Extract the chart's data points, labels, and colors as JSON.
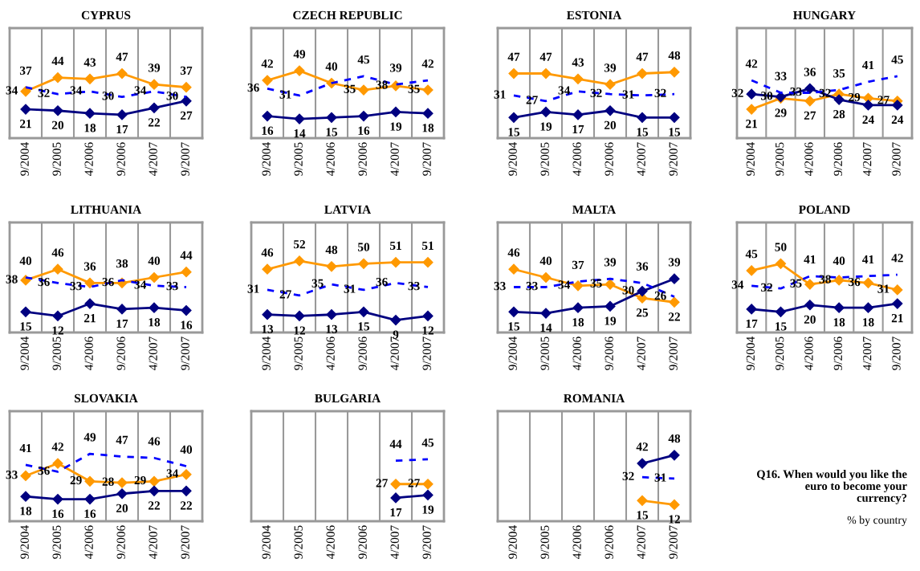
{
  "chart_data": [
    {
      "type": "line",
      "title": "CYPRUS",
      "categories": [
        "9/2004",
        "9/2005",
        "4/2006",
        "9/2006",
        "4/2007",
        "9/2007"
      ],
      "ylim": [
        0,
        80
      ],
      "tick_labels": "x",
      "data_labels": true,
      "series": [
        {
          "color": "#ff9900",
          "marker": "diamond",
          "line_style": "solid",
          "values": [
            34,
            44,
            43,
            47,
            39,
            37
          ]
        },
        {
          "color": "#000080",
          "marker": "diamond",
          "line_style": "solid",
          "values": [
            21,
            20,
            18,
            17,
            22,
            27
          ]
        },
        {
          "color": "#0000ff",
          "marker": "none",
          "line_style": "dashed",
          "values": [
            37,
            32,
            34,
            30,
            34,
            30
          ]
        }
      ]
    },
    {
      "type": "line",
      "title": "CZECH REPUBLIC",
      "categories": [
        "9/2004",
        "9/2005",
        "4/2006",
        "9/2006",
        "4/2007",
        "9/2007"
      ],
      "ylim": [
        0,
        80
      ],
      "tick_labels": "x",
      "data_labels": true,
      "series": [
        {
          "color": "#ff9900",
          "marker": "diamond",
          "line_style": "solid",
          "values": [
            42,
            49,
            40,
            35,
            38,
            35
          ]
        },
        {
          "color": "#000080",
          "marker": "diamond",
          "line_style": "solid",
          "values": [
            16,
            14,
            15,
            16,
            19,
            18
          ]
        },
        {
          "color": "#0000ff",
          "marker": "none",
          "line_style": "dashed",
          "values": [
            36,
            31,
            40,
            45,
            39,
            42
          ],
          "value_labels": [
            "36",
            "31",
            null,
            "45",
            "39",
            "42"
          ]
        }
      ]
    },
    {
      "type": "line",
      "title": "ESTONIA",
      "categories": [
        "9/2004",
        "9/2005",
        "4/2006",
        "9/2006",
        "4/2007",
        "9/2007"
      ],
      "ylim": [
        0,
        80
      ],
      "tick_labels": "x",
      "data_labels": true,
      "series": [
        {
          "color": "#ff9900",
          "marker": "diamond",
          "line_style": "solid",
          "values": [
            47,
            47,
            43,
            39,
            47,
            48
          ]
        },
        {
          "color": "#000080",
          "marker": "diamond",
          "line_style": "solid",
          "values": [
            15,
            19,
            17,
            20,
            15,
            15
          ]
        },
        {
          "color": "#0000ff",
          "marker": "none",
          "line_style": "dashed",
          "values": [
            31,
            27,
            34,
            32,
            31,
            32
          ]
        }
      ]
    },
    {
      "type": "line",
      "title": "HUNGARY",
      "categories": [
        "9/2004",
        "9/2005",
        "4/2006",
        "9/2006",
        "4/2007",
        "9/2007"
      ],
      "ylim": [
        0,
        80
      ],
      "tick_labels": "x",
      "data_labels": true,
      "series": [
        {
          "color": "#ff9900",
          "marker": "diamond",
          "line_style": "solid",
          "values": [
            21,
            29,
            27,
            32,
            29,
            27
          ]
        },
        {
          "color": "#000080",
          "marker": "diamond",
          "line_style": "solid",
          "values": [
            32,
            30,
            36,
            28,
            24,
            24
          ]
        },
        {
          "color": "#0000ff",
          "marker": "none",
          "line_style": "dashed",
          "values": [
            42,
            33,
            33,
            35,
            41,
            45
          ]
        }
      ]
    },
    {
      "type": "line",
      "title": "LITHUANIA",
      "categories": [
        "9/2004",
        "9/2005",
        "4/2006",
        "9/2006",
        "4/2007",
        "9/2007"
      ],
      "ylim": [
        0,
        80
      ],
      "tick_labels": "x",
      "data_labels": true,
      "series": [
        {
          "color": "#ff9900",
          "marker": "diamond",
          "line_style": "solid",
          "values": [
            38,
            46,
            36,
            36,
            40,
            44
          ]
        },
        {
          "color": "#000080",
          "marker": "diamond",
          "line_style": "solid",
          "values": [
            15,
            12,
            21,
            17,
            18,
            16
          ]
        },
        {
          "color": "#0000ff",
          "marker": "none",
          "line_style": "dashed",
          "values": [
            40,
            36,
            33,
            38,
            34,
            33
          ]
        }
      ]
    },
    {
      "type": "line",
      "title": "LATVIA",
      "categories": [
        "9/2004",
        "9/2005",
        "4/2006",
        "9/2006",
        "4/2007",
        "9/2007"
      ],
      "ylim": [
        0,
        80
      ],
      "tick_labels": "x",
      "data_labels": true,
      "series": [
        {
          "color": "#ff9900",
          "marker": "diamond",
          "line_style": "solid",
          "values": [
            46,
            52,
            48,
            50,
            51,
            51
          ]
        },
        {
          "color": "#000080",
          "marker": "diamond",
          "line_style": "solid",
          "values": [
            13,
            12,
            13,
            15,
            9,
            12
          ]
        },
        {
          "color": "#0000ff",
          "marker": "none",
          "line_style": "dashed",
          "values": [
            31,
            27,
            35,
            31,
            36,
            33
          ]
        }
      ]
    },
    {
      "type": "line",
      "title": "MALTA",
      "categories": [
        "9/2004",
        "9/2005",
        "4/2006",
        "9/2006",
        "4/2007",
        "9/2007"
      ],
      "ylim": [
        0,
        80
      ],
      "tick_labels": "x",
      "data_labels": true,
      "series": [
        {
          "color": "#ff9900",
          "marker": "diamond",
          "line_style": "solid",
          "values": [
            46,
            40,
            34,
            35,
            25,
            22
          ]
        },
        {
          "color": "#000080",
          "marker": "diamond",
          "line_style": "solid",
          "values": [
            15,
            14,
            18,
            19,
            30,
            39
          ]
        },
        {
          "color": "#0000ff",
          "marker": "none",
          "line_style": "dashed",
          "values": [
            33,
            33,
            37,
            39,
            36,
            26
          ]
        }
      ]
    },
    {
      "type": "line",
      "title": "POLAND",
      "categories": [
        "9/2004",
        "9/2005",
        "4/2006",
        "9/2006",
        "4/2007",
        "9/2007"
      ],
      "ylim": [
        0,
        80
      ],
      "tick_labels": "x",
      "data_labels": true,
      "series": [
        {
          "color": "#ff9900",
          "marker": "diamond",
          "line_style": "solid",
          "values": [
            45,
            50,
            35,
            38,
            36,
            31
          ]
        },
        {
          "color": "#000080",
          "marker": "diamond",
          "line_style": "solid",
          "values": [
            17,
            15,
            20,
            18,
            18,
            21
          ]
        },
        {
          "color": "#0000ff",
          "marker": "none",
          "line_style": "dashed",
          "values": [
            34,
            32,
            41,
            40,
            41,
            42
          ]
        }
      ]
    },
    {
      "type": "line",
      "title": "SLOVAKIA",
      "categories": [
        "9/2004",
        "9/2005",
        "4/2006",
        "9/2006",
        "4/2007",
        "9/2007"
      ],
      "ylim": [
        0,
        80
      ],
      "tick_labels": "x",
      "data_labels": true,
      "series": [
        {
          "color": "#ff9900",
          "marker": "diamond",
          "line_style": "solid",
          "values": [
            33,
            42,
            29,
            28,
            29,
            34
          ]
        },
        {
          "color": "#000080",
          "marker": "diamond",
          "line_style": "solid",
          "values": [
            18,
            16,
            16,
            20,
            22,
            22
          ]
        },
        {
          "color": "#0000ff",
          "marker": "none",
          "line_style": "dashed",
          "values": [
            41,
            36,
            49,
            47,
            46,
            40
          ]
        }
      ]
    },
    {
      "type": "line",
      "title": "BULGARIA",
      "categories": [
        "9/2004",
        "9/2005",
        "4/2006",
        "9/2006",
        "4/2007",
        "9/2007"
      ],
      "ylim": [
        0,
        80
      ],
      "tick_labels": "x",
      "data_labels": true,
      "series": [
        {
          "color": "#ff9900",
          "marker": "diamond",
          "line_style": "solid",
          "values": [
            null,
            null,
            null,
            null,
            27,
            27
          ]
        },
        {
          "color": "#000080",
          "marker": "diamond",
          "line_style": "solid",
          "values": [
            null,
            null,
            null,
            null,
            17,
            19
          ]
        },
        {
          "color": "#0000ff",
          "marker": "none",
          "line_style": "dashed",
          "values": [
            null,
            null,
            null,
            null,
            44,
            45
          ]
        }
      ]
    },
    {
      "type": "line",
      "title": "ROMANIA",
      "categories": [
        "9/2004",
        "9/2005",
        "4/2006",
        "9/2006",
        "4/2007",
        "9/2007"
      ],
      "ylim": [
        0,
        80
      ],
      "tick_labels": "x",
      "data_labels": true,
      "series": [
        {
          "color": "#ff9900",
          "marker": "diamond",
          "line_style": "solid",
          "values": [
            null,
            null,
            null,
            null,
            15,
            12
          ]
        },
        {
          "color": "#000080",
          "marker": "diamond",
          "line_style": "solid",
          "values": [
            null,
            null,
            null,
            null,
            42,
            48
          ]
        },
        {
          "color": "#0000ff",
          "marker": "none",
          "line_style": "dashed",
          "values": [
            null,
            null,
            null,
            null,
            32,
            31
          ]
        }
      ]
    },
    {
      "type": "other",
      "annotations": [
        "Q16. When would you like the\neuro to become your\ncurrency?",
        "% by country"
      ]
    }
  ]
}
